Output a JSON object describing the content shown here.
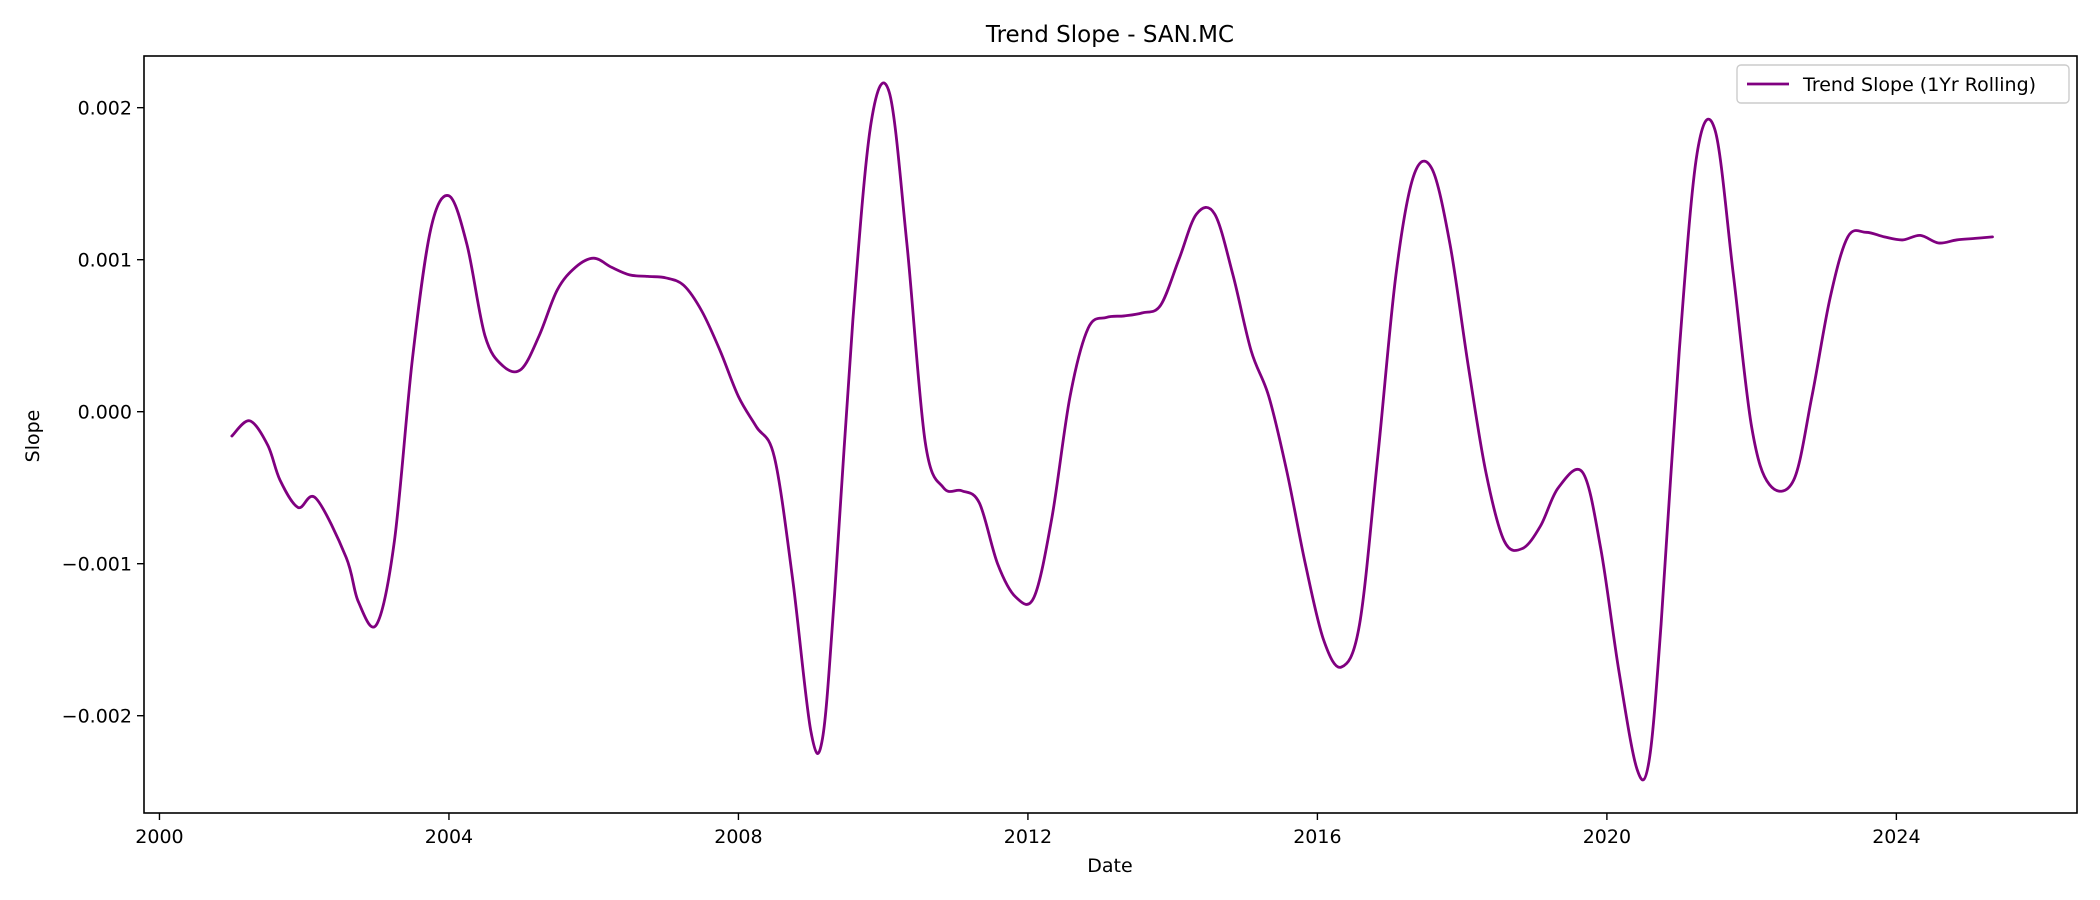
{
  "chart_data": {
    "type": "line",
    "title": "Trend Slope - SAN.MC",
    "xlabel": "Date",
    "ylabel": "Slope",
    "xlim": [
      "1999-10-15",
      "2026-07-01"
    ],
    "ylim": [
      -0.00264,
      0.00234
    ],
    "x_ticks": [
      "2000-01-01",
      "2004-01-01",
      "2008-01-01",
      "2012-01-01",
      "2016-01-01",
      "2020-01-01",
      "2024-01-01"
    ],
    "x_tick_labels": [
      "2000",
      "2004",
      "2008",
      "2012",
      "2016",
      "2020",
      "2024"
    ],
    "y_ticks": [
      -0.002,
      -0.001,
      0.0,
      0.001,
      0.002
    ],
    "y_tick_labels": [
      "−0.002",
      "−0.001",
      "0.000",
      "0.001",
      "0.002"
    ],
    "grid": false,
    "legend": {
      "position": "top-right"
    },
    "colors": {
      "series": "#800080"
    },
    "series": [
      {
        "name": "Trend Slope (1Yr Rolling)",
        "color": "#800080",
        "x": [
          "2001-01-01",
          "2001-04-01",
          "2001-07-01",
          "2001-09-01",
          "2001-12-01",
          "2002-03-01",
          "2002-08-01",
          "2002-10-01",
          "2003-01-01",
          "2003-04-01",
          "2003-07-01",
          "2003-10-01",
          "2004-01-01",
          "2004-04-01",
          "2004-07-01",
          "2004-10-01",
          "2005-01-01",
          "2005-04-01",
          "2005-07-01",
          "2005-10-01",
          "2006-01-01",
          "2006-04-01",
          "2006-07-01",
          "2006-10-01",
          "2007-01-01",
          "2007-04-01",
          "2007-07-01",
          "2007-10-01",
          "2008-01-01",
          "2008-04-01",
          "2008-07-01",
          "2008-10-01",
          "2009-01-01",
          "2009-03-01",
          "2009-05-01",
          "2009-08-01",
          "2009-11-01",
          "2010-02-01",
          "2010-05-01",
          "2010-08-01",
          "2010-11-01",
          "2011-02-01",
          "2011-05-01",
          "2011-08-01",
          "2011-11-01",
          "2012-02-01",
          "2012-05-01",
          "2012-08-01",
          "2012-11-01",
          "2013-02-01",
          "2013-05-01",
          "2013-08-01",
          "2013-11-01",
          "2014-02-01",
          "2014-05-01",
          "2014-08-01",
          "2014-11-01",
          "2015-02-01",
          "2015-05-01",
          "2015-08-01",
          "2015-11-01",
          "2016-02-01",
          "2016-05-01",
          "2016-08-01",
          "2016-11-01",
          "2017-02-01",
          "2017-05-01",
          "2017-08-01",
          "2017-11-01",
          "2018-02-01",
          "2018-05-01",
          "2018-08-01",
          "2018-11-01",
          "2019-02-01",
          "2019-05-01",
          "2019-09-01",
          "2019-12-01",
          "2020-03-01",
          "2020-06-01",
          "2020-08-01",
          "2020-10-01",
          "2021-01-01",
          "2021-04-01",
          "2021-07-01",
          "2021-10-01",
          "2022-01-01",
          "2022-04-01",
          "2022-08-01",
          "2022-11-01",
          "2023-02-01",
          "2023-05-01",
          "2023-08-01",
          "2023-11-01",
          "2024-02-01",
          "2024-05-01",
          "2024-08-01",
          "2024-11-01",
          "2025-02-01",
          "2025-05-01"
        ],
        "y": [
          -0.00016,
          -6e-05,
          -0.00022,
          -0.00045,
          -0.00063,
          -0.00057,
          -0.00096,
          -0.00125,
          -0.0014,
          -0.00085,
          0.00035,
          0.0012,
          0.00142,
          0.0011,
          0.0005,
          0.0003,
          0.00028,
          0.0005,
          0.0008,
          0.00095,
          0.00101,
          0.00095,
          0.0009,
          0.00089,
          0.00088,
          0.00083,
          0.00066,
          0.0004,
          0.0001,
          -0.0001,
          -0.0003,
          -0.0011,
          -0.0021,
          -0.00215,
          -0.0012,
          0.0006,
          0.0019,
          0.0021,
          0.0011,
          -0.0002,
          -0.0005,
          -0.00052,
          -0.0006,
          -0.001,
          -0.00122,
          -0.00122,
          -0.0007,
          0.0001,
          0.00055,
          0.00062,
          0.00063,
          0.00065,
          0.0007,
          0.001,
          0.0013,
          0.0013,
          0.0009,
          0.0004,
          0.0001,
          -0.0004,
          -0.001,
          -0.0015,
          -0.00168,
          -0.0014,
          -0.0003,
          0.0009,
          0.00155,
          0.0016,
          0.0011,
          0.0003,
          -0.0004,
          -0.00085,
          -0.0009,
          -0.00075,
          -0.0005,
          -0.0004,
          -0.0009,
          -0.0017,
          -0.00235,
          -0.0023,
          -0.0014,
          0.0004,
          0.0017,
          0.00185,
          0.0009,
          -0.0001,
          -0.00048,
          -0.00045,
          0.0001,
          0.00075,
          0.00115,
          0.00118,
          0.00115,
          0.00113,
          0.00116,
          0.00111,
          0.00113,
          0.00114,
          0.00115
        ]
      }
    ]
  }
}
